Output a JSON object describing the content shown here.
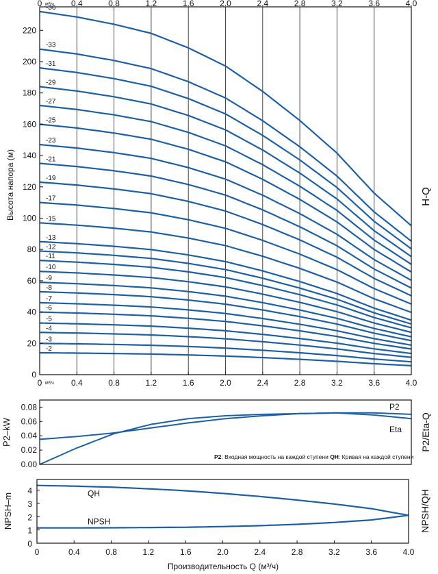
{
  "chart_data": [
    {
      "type": "line",
      "panel": "H-Q",
      "side_label": "H-Q",
      "ylabel": "Высота напора (м)",
      "x_unit": "м³/ч",
      "xlim": [
        0,
        4.0
      ],
      "ylim": [
        0,
        235
      ],
      "xticks": [
        "0",
        "0.4",
        "0.8",
        "1.2",
        "1.6",
        "2.0",
        "2.4",
        "2.8",
        "3.2",
        "3.6",
        "4.0"
      ],
      "yticks": [
        "0",
        "20",
        "40",
        "60",
        "80",
        "100",
        "120",
        "140",
        "160",
        "180",
        "200",
        "220"
      ],
      "line_color": "#1d5fa3",
      "curve_profile": {
        "x": [
          0,
          0.4,
          0.8,
          1.2,
          1.6,
          2.0,
          2.4,
          2.8,
          3.2,
          3.6,
          4.0
        ],
        "relative_head": [
          1.0,
          0.985,
          0.965,
          0.94,
          0.9,
          0.85,
          0.78,
          0.7,
          0.61,
          0.5,
          0.41
        ]
      },
      "series": [
        {
          "name": "-2",
          "shutoff_head": 14
        },
        {
          "name": "-3",
          "shutoff_head": 20
        },
        {
          "name": "-4",
          "shutoff_head": 27
        },
        {
          "name": "-5",
          "shutoff_head": 33
        },
        {
          "name": "-6",
          "shutoff_head": 40
        },
        {
          "name": "-7",
          "shutoff_head": 46
        },
        {
          "name": "-8",
          "shutoff_head": 53
        },
        {
          "name": "-9",
          "shutoff_head": 59
        },
        {
          "name": "-10",
          "shutoff_head": 66
        },
        {
          "name": "-11",
          "shutoff_head": 73
        },
        {
          "name": "-12",
          "shutoff_head": 79
        },
        {
          "name": "-13",
          "shutoff_head": 85
        },
        {
          "name": "-15",
          "shutoff_head": 97
        },
        {
          "name": "-17",
          "shutoff_head": 110
        },
        {
          "name": "-19",
          "shutoff_head": 123
        },
        {
          "name": "-21",
          "shutoff_head": 135
        },
        {
          "name": "-23",
          "shutoff_head": 147
        },
        {
          "name": "-25",
          "shutoff_head": 160
        },
        {
          "name": "-27",
          "shutoff_head": 172
        },
        {
          "name": "-29",
          "shutoff_head": 184
        },
        {
          "name": "-31",
          "shutoff_head": 196
        },
        {
          "name": "-33",
          "shutoff_head": 208
        },
        {
          "name": "-36",
          "shutoff_head": 232
        }
      ]
    },
    {
      "type": "line",
      "panel": "P2/Eta-Q",
      "side_label": "P2/Eta-Q",
      "ylabel": "P2–kW",
      "xlim": [
        0,
        4.0
      ],
      "ylim": [
        0,
        0.09
      ],
      "yticks": [
        "0.00",
        "0.02",
        "0.04",
        "0.06",
        "0.08"
      ],
      "note_p2_key": "P2",
      "note_p2_text": ": Входная мощность на каждой ступени ",
      "note_qh_key": "QH",
      "note_qh_text": ": Кривая на каждой ступени",
      "series": [
        {
          "name": "P2",
          "x": [
            0,
            0.4,
            0.8,
            1.2,
            1.6,
            2.0,
            2.4,
            2.8,
            3.2,
            3.6,
            4.0
          ],
          "y": [
            0.035,
            0.039,
            0.044,
            0.051,
            0.058,
            0.064,
            0.068,
            0.071,
            0.072,
            0.072,
            0.07
          ]
        },
        {
          "name": "Eta",
          "x": [
            0,
            0.4,
            0.8,
            1.2,
            1.6,
            2.0,
            2.4,
            2.8,
            3.2,
            3.6,
            4.0
          ],
          "y": [
            0.0,
            0.023,
            0.043,
            0.056,
            0.064,
            0.068,
            0.07,
            0.071,
            0.072,
            0.069,
            0.064
          ]
        }
      ]
    },
    {
      "type": "line",
      "panel": "NPSH/QH",
      "side_label": "NPSH/QH",
      "ylabel": "NPSH–m",
      "xlabel": "Производительность Q (м³/ч)",
      "xlim": [
        0,
        4.0
      ],
      "ylim": [
        0,
        4.8
      ],
      "xticks": [
        "0",
        "0.4",
        "0.8",
        "1.2",
        "1.6",
        "2.0",
        "2.4",
        "2.8",
        "3.2",
        "3.6",
        "4.0"
      ],
      "yticks": [
        "0",
        "1",
        "2",
        "3",
        "4"
      ],
      "series": [
        {
          "name": "QH",
          "x": [
            0,
            0.4,
            0.8,
            1.2,
            1.6,
            2.0,
            2.4,
            2.8,
            3.2,
            3.6,
            4.0
          ],
          "y": [
            4.35,
            4.3,
            4.22,
            4.1,
            3.95,
            3.75,
            3.52,
            3.25,
            2.95,
            2.6,
            2.1
          ]
        },
        {
          "name": "NPSH",
          "x": [
            0,
            0.4,
            0.8,
            1.2,
            1.6,
            2.0,
            2.4,
            2.8,
            3.2,
            3.6,
            4.0
          ],
          "y": [
            1.15,
            1.15,
            1.16,
            1.18,
            1.2,
            1.25,
            1.32,
            1.42,
            1.56,
            1.75,
            2.1
          ]
        }
      ]
    }
  ]
}
